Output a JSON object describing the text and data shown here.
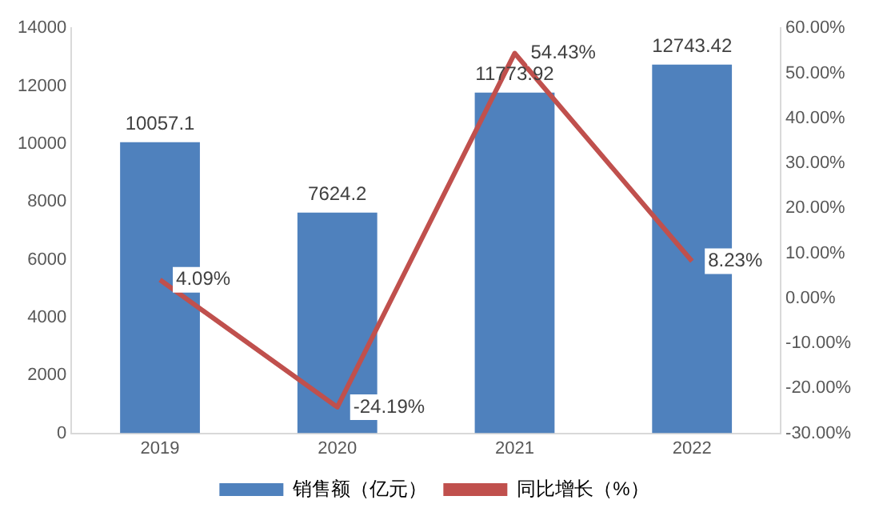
{
  "chart_data": {
    "type": "bar",
    "categories": [
      "2019",
      "2020",
      "2021",
      "2022"
    ],
    "series": [
      {
        "name": "销售额（亿元）",
        "color": "#4f81bd",
        "values": [
          10057.1,
          7624.2,
          11773.92,
          12743.42
        ],
        "value_labels": [
          "10057.1",
          "7624.2",
          "11773.92",
          "12743.42"
        ]
      },
      {
        "name": "同比增长（%）",
        "type": "line",
        "axis": "y2",
        "color": "#c0504d",
        "marker": "none",
        "values": [
          4.09,
          -24.19,
          54.43,
          8.23
        ],
        "value_labels": [
          "4.09%",
          "-24.19%",
          "54.43%",
          "8.23%"
        ]
      }
    ],
    "ylim": [
      0,
      14000
    ],
    "yticks": [
      0,
      2000,
      4000,
      6000,
      8000,
      10000,
      12000,
      14000
    ],
    "y2lim": [
      -30,
      60
    ],
    "y2ticks": [
      {
        "value": -30,
        "label": "-30.00%"
      },
      {
        "value": -20,
        "label": "-20.00%"
      },
      {
        "value": -10,
        "label": "-10.00%"
      },
      {
        "value": 0,
        "label": "0.00%"
      },
      {
        "value": 10,
        "label": "10.00%"
      },
      {
        "value": 20,
        "label": "20.00%"
      },
      {
        "value": 30,
        "label": "30.00%"
      },
      {
        "value": 40,
        "label": "40.00%"
      },
      {
        "value": 50,
        "label": "50.00%"
      },
      {
        "value": 60,
        "label": "60.00%"
      }
    ],
    "grid": false,
    "legend": "bottom"
  }
}
